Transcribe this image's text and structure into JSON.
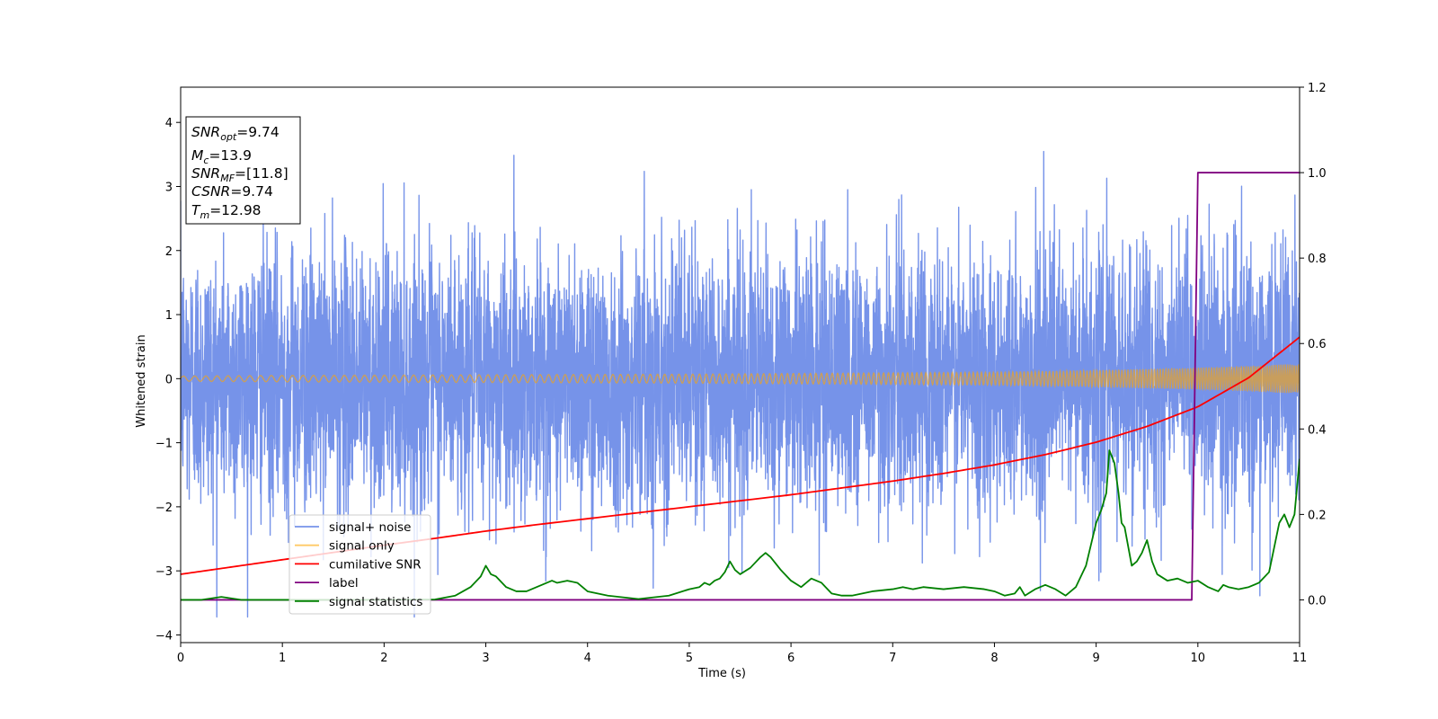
{
  "chart_data": {
    "type": "line",
    "xlabel": "Time (s)",
    "ylabel": "Whitened strain",
    "xlim": [
      0,
      11
    ],
    "ylim": [
      -4.12,
      4.55
    ],
    "y2lim": [
      -0.1,
      1.2
    ],
    "xticks": [
      "0",
      "1",
      "2",
      "3",
      "4",
      "5",
      "6",
      "7",
      "8",
      "9",
      "10",
      "11"
    ],
    "yticks": [
      "−4",
      "−3",
      "−2",
      "−1",
      "0",
      "1",
      "2",
      "3",
      "4"
    ],
    "y2ticks": [
      "0.0",
      "0.2",
      "0.4",
      "0.6",
      "0.8",
      "1.0",
      "1.2"
    ],
    "legend_position": "lower-left",
    "stats": [
      {
        "sym": "SNR",
        "sub": "opt",
        "val": "=9.74"
      },
      {
        "sym": "M",
        "sub": "c",
        "val": "=13.9"
      },
      {
        "sym": "SNR",
        "sub": "MF",
        "val": "=[11.8]"
      },
      {
        "sym": "CSNR",
        "sub": "",
        "val": "=9.74"
      },
      {
        "sym": "T",
        "sub": "m",
        "val": "=12.98"
      }
    ],
    "series": [
      {
        "name": "signal+ noise",
        "color": "#4169E1",
        "axis": "left",
        "noise_sigma": 1.0
      },
      {
        "name": "signal only",
        "color": "#FFA500",
        "axis": "left",
        "x": [
          0,
          1,
          2,
          3,
          4,
          5,
          6,
          7,
          8,
          9,
          9.5,
          10,
          10.5,
          11
        ],
        "amp": [
          0.04,
          0.05,
          0.055,
          0.06,
          0.065,
          0.07,
          0.08,
          0.09,
          0.1,
          0.13,
          0.15,
          0.17,
          0.2,
          0.23
        ]
      },
      {
        "name": "cumilative SNR",
        "color": "#FF0000",
        "axis": "right",
        "x": [
          0,
          0.5,
          1,
          1.5,
          2,
          2.5,
          3,
          3.5,
          4,
          4.5,
          5,
          5.5,
          6,
          6.5,
          7,
          7.5,
          8,
          8.5,
          9,
          9.5,
          10,
          10.5,
          11
        ],
        "y": [
          0.06,
          0.077,
          0.094,
          0.111,
          0.128,
          0.144,
          0.161,
          0.176,
          0.19,
          0.204,
          0.218,
          0.232,
          0.246,
          0.262,
          0.278,
          0.296,
          0.316,
          0.34,
          0.369,
          0.406,
          0.452,
          0.52,
          0.615
        ]
      },
      {
        "name": "label",
        "color": "#800080",
        "axis": "right",
        "x": [
          0,
          9.94,
          10,
          11
        ],
        "y": [
          0,
          0,
          1,
          1
        ]
      },
      {
        "name": "signal statistics",
        "color": "#008000",
        "axis": "right",
        "x": [
          0,
          0.2,
          0.4,
          0.6,
          1,
          1.5,
          2,
          2.5,
          2.7,
          2.85,
          2.95,
          3.0,
          3.05,
          3.1,
          3.2,
          3.3,
          3.4,
          3.5,
          3.6,
          3.65,
          3.7,
          3.8,
          3.9,
          4.0,
          4.2,
          4.5,
          4.8,
          5.0,
          5.1,
          5.15,
          5.2,
          5.25,
          5.3,
          5.35,
          5.4,
          5.45,
          5.5,
          5.6,
          5.7,
          5.75,
          5.8,
          5.9,
          6.0,
          6.1,
          6.2,
          6.3,
          6.4,
          6.5,
          6.6,
          6.8,
          7.0,
          7.1,
          7.2,
          7.3,
          7.5,
          7.7,
          7.9,
          8.0,
          8.1,
          8.2,
          8.25,
          8.3,
          8.4,
          8.5,
          8.6,
          8.7,
          8.8,
          8.9,
          9.0,
          9.05,
          9.1,
          9.13,
          9.18,
          9.22,
          9.25,
          9.28,
          9.35,
          9.4,
          9.45,
          9.5,
          9.55,
          9.6,
          9.7,
          9.8,
          9.9,
          10.0,
          10.1,
          10.2,
          10.25,
          10.3,
          10.4,
          10.5,
          10.6,
          10.7,
          10.8,
          10.85,
          10.9,
          10.95,
          11.0
        ],
        "y": [
          0,
          0,
          0.007,
          0,
          0,
          0,
          0,
          0.001,
          0.01,
          0.03,
          0.055,
          0.08,
          0.06,
          0.055,
          0.03,
          0.02,
          0.02,
          0.03,
          0.04,
          0.045,
          0.04,
          0.045,
          0.04,
          0.02,
          0.01,
          0.002,
          0.01,
          0.025,
          0.03,
          0.04,
          0.035,
          0.045,
          0.05,
          0.065,
          0.09,
          0.07,
          0.06,
          0.075,
          0.1,
          0.11,
          0.1,
          0.07,
          0.045,
          0.03,
          0.05,
          0.04,
          0.015,
          0.01,
          0.01,
          0.02,
          0.025,
          0.03,
          0.025,
          0.03,
          0.025,
          0.03,
          0.025,
          0.02,
          0.01,
          0.015,
          0.03,
          0.01,
          0.025,
          0.035,
          0.025,
          0.01,
          0.03,
          0.08,
          0.18,
          0.21,
          0.25,
          0.35,
          0.32,
          0.25,
          0.18,
          0.17,
          0.08,
          0.09,
          0.11,
          0.14,
          0.09,
          0.06,
          0.045,
          0.05,
          0.04,
          0.045,
          0.03,
          0.02,
          0.035,
          0.03,
          0.025,
          0.03,
          0.04,
          0.065,
          0.18,
          0.2,
          0.17,
          0.2,
          0.33
        ]
      }
    ]
  }
}
